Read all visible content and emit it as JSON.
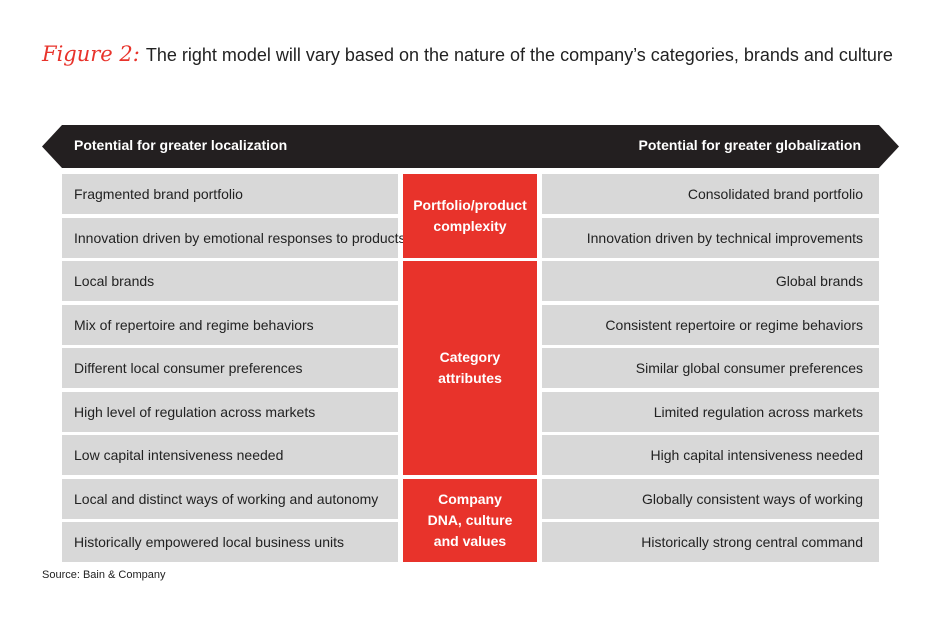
{
  "figure": {
    "label": "Figure 2:",
    "title": "The right model will vary based on the nature of the company’s categories, brands and culture"
  },
  "arrow": {
    "left_label": "Potential for greater localization",
    "right_label": "Potential for greater globalization"
  },
  "groups": [
    {
      "label": "Portfolio/product\ncomplexity",
      "rows": [
        {
          "left": "Fragmented brand portfolio",
          "right": "Consolidated brand portfolio"
        },
        {
          "left": "Innovation driven by emotional responses to products",
          "right": "Innovation driven by technical improvements"
        }
      ]
    },
    {
      "label": "Category\nattributes",
      "rows": [
        {
          "left": "Local brands",
          "right": "Global brands"
        },
        {
          "left": "Mix of repertoire and regime behaviors",
          "right": "Consistent repertoire or regime behaviors"
        },
        {
          "left": "Different local consumer preferences",
          "right": "Similar global consumer preferences"
        },
        {
          "left": "High level of regulation across markets",
          "right": "Limited regulation across markets"
        },
        {
          "left": "Low capital intensiveness needed",
          "right": "High capital intensiveness needed"
        }
      ]
    },
    {
      "label": "Company\nDNA, culture\nand values",
      "rows": [
        {
          "left": "Local and distinct ways of working and autonomy",
          "right": "Globally consistent ways of working"
        },
        {
          "left": "Historically empowered local business units",
          "right": "Historically strong central command"
        }
      ]
    }
  ],
  "source": "Source: Bain & Company",
  "colors": {
    "accent": "#e8332b",
    "arrow": "#231f20",
    "row": "#d8d8d8"
  }
}
